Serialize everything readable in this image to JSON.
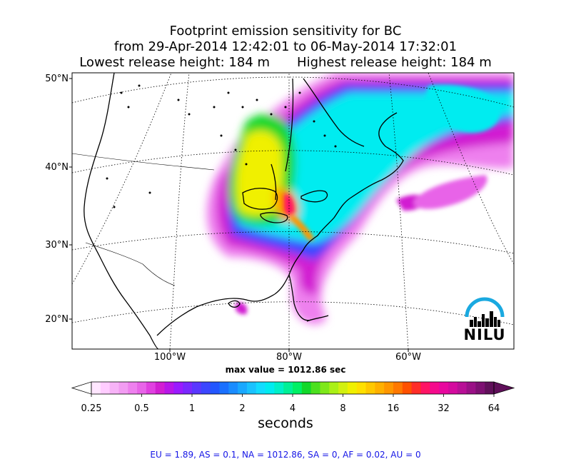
{
  "title": {
    "line1": "Footprint emission sensitivity for BC",
    "line2": "from 29-Apr-2014 12:42:01 to 06-May-2014 17:32:01",
    "lowest": "Lowest release height: 184 m",
    "highest": "Highest release height: 184 m"
  },
  "axes": {
    "lat_labels": [
      "50°N",
      "40°N",
      "30°N",
      "20°N"
    ],
    "lon_labels": [
      "100°W",
      "80°W",
      "60°W"
    ]
  },
  "max_value": "max value = 1012.86 sec",
  "colorbar": {
    "ticks": [
      "0.25",
      "0.5",
      "1",
      "2",
      "4",
      "8",
      "16",
      "32",
      "64"
    ],
    "units": "seconds",
    "scale": "log2",
    "range": [
      0.25,
      64
    ],
    "colors": [
      "#ffe6ff",
      "#ffccff",
      "#f7b3f7",
      "#f29cf2",
      "#ee80ee",
      "#e864e8",
      "#e040e0",
      "#d21ed2",
      "#b816e8",
      "#9a1aff",
      "#7a28ff",
      "#5a37ff",
      "#3c46ff",
      "#2356ff",
      "#1a70ff",
      "#1a8cff",
      "#1aa8ff",
      "#1ac2ff",
      "#12dcff",
      "#00ecf0",
      "#00f0c8",
      "#00f096",
      "#00f064",
      "#12d82a",
      "#4be01e",
      "#7ee81a",
      "#aaf016",
      "#d2f010",
      "#f0f000",
      "#ffe000",
      "#ffc800",
      "#ffb000",
      "#ff9600",
      "#ff7800",
      "#ff5000",
      "#ff2d28",
      "#ff1464",
      "#f50a8c",
      "#e8089e",
      "#d40a9e",
      "#b80f96",
      "#9a1086",
      "#7d1072",
      "#60105a"
    ]
  },
  "logo": {
    "text": "NILU",
    "arc_color": "#1aa9e0"
  },
  "footer": "EU = 1.89,  AS = 0.1,  NA = 1012.86,  SA = 0,  AF = 0.02,  AU = 0"
}
